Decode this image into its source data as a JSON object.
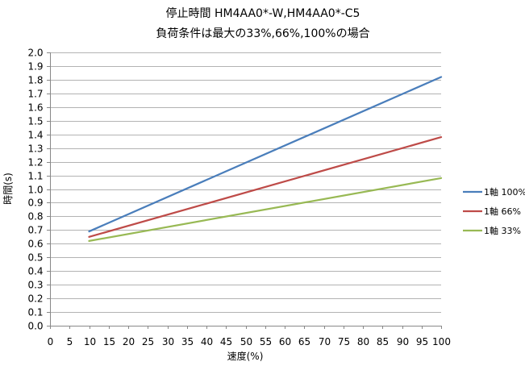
{
  "chart_data": {
    "type": "line",
    "title": [
      "停止時間 HM4AA0*-W,HM4AA0*-C5",
      "負荷条件は最大の33%,66%,100%の場合"
    ],
    "xlabel": "速度(%)",
    "ylabel": "時間(s)",
    "xlim": [
      0,
      100
    ],
    "ylim": [
      0,
      2.0
    ],
    "xticks": [
      0,
      5,
      10,
      15,
      20,
      25,
      30,
      35,
      40,
      45,
      50,
      55,
      60,
      65,
      70,
      75,
      80,
      85,
      90,
      95,
      100
    ],
    "yticks": [
      0,
      0.1,
      0.2,
      0.3,
      0.4,
      0.5,
      0.6,
      0.7,
      0.8,
      0.9,
      1.0,
      1.1,
      1.2,
      1.3,
      1.4,
      1.5,
      1.6,
      1.7,
      1.8,
      1.9,
      2.0
    ],
    "grid": true,
    "legend_position": "right",
    "series": [
      {
        "name": "1軸 100%",
        "color": "#4a7ebb",
        "x": [
          10,
          100
        ],
        "y": [
          0.69,
          1.82
        ]
      },
      {
        "name": "1軸 66%",
        "color": "#be4b48",
        "x": [
          10,
          100
        ],
        "y": [
          0.65,
          1.38
        ]
      },
      {
        "name": "1軸 33%",
        "color": "#98b954",
        "x": [
          10,
          100
        ],
        "y": [
          0.62,
          1.08
        ]
      }
    ]
  }
}
